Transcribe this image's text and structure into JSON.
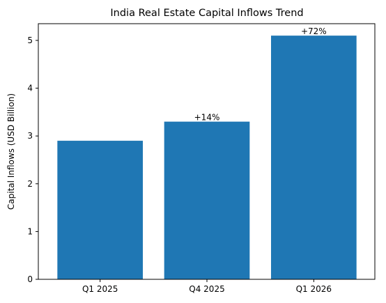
{
  "chart_data": {
    "type": "bar",
    "title": "India Real Estate Capital Inflows Trend",
    "xlabel": "",
    "ylabel": "Capital Inflows (USD Billion)",
    "categories": [
      "Q1 2025",
      "Q4 2025",
      "Q1 2026"
    ],
    "values": [
      2.9,
      3.3,
      5.1
    ],
    "data_labels": [
      "",
      "+14%",
      "+72%"
    ],
    "ylim": [
      0,
      5.35
    ],
    "yticks": [
      0,
      1,
      2,
      3,
      4,
      5
    ],
    "grid": false,
    "legend": "none",
    "bar_color": "#1f77b4"
  }
}
